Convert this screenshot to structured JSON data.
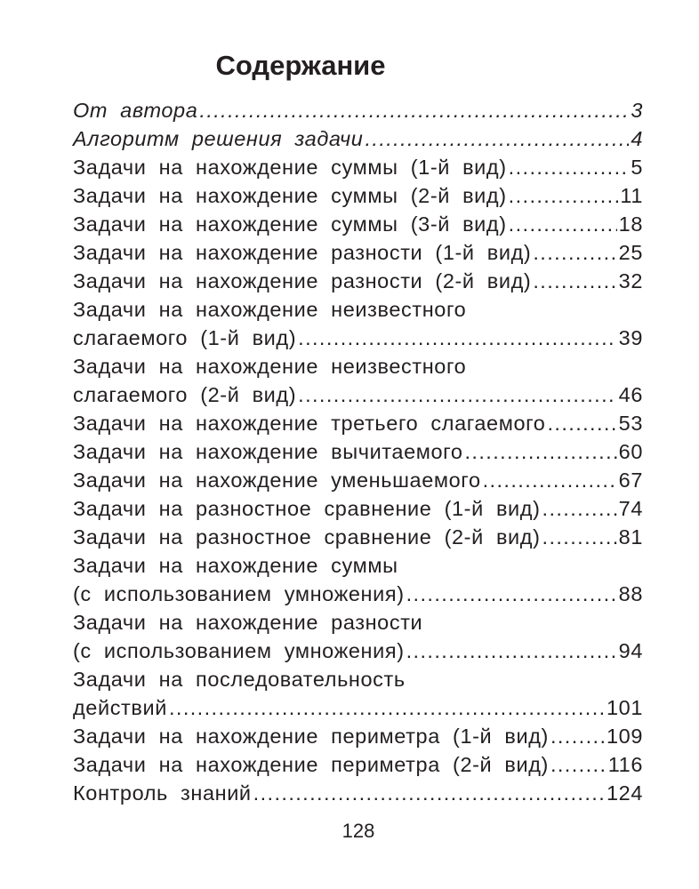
{
  "title": "Содержание",
  "entries": [
    {
      "text": "От автора",
      "page": "3",
      "italic": true
    },
    {
      "text": "Алгоритм решения задачи",
      "page": "4",
      "italic": true
    },
    {
      "text": "Задачи на нахождение суммы (1-й вид)",
      "page": "5"
    },
    {
      "text": "Задачи на нахождение суммы (2-й вид)",
      "page": "11"
    },
    {
      "text": "Задачи на нахождение суммы (3-й вид)",
      "page": "18"
    },
    {
      "text": "Задачи на нахождение разности (1-й вид)",
      "page": "25"
    },
    {
      "text": "Задачи на нахождение разности (2-й вид)",
      "page": "32"
    },
    {
      "first_line": "Задачи на нахождение неизвестного",
      "text": "слагаемого (1-й вид)",
      "page": "39"
    },
    {
      "first_line": "Задачи на нахождение неизвестного",
      "text": "слагаемого (2-й вид)",
      "page": "46"
    },
    {
      "text": "Задачи на нахождение третьего слагаемого",
      "page": "53"
    },
    {
      "text": "Задачи на нахождение вычитаемого",
      "page": "60"
    },
    {
      "text": "Задачи на нахождение уменьшаемого",
      "page": "67"
    },
    {
      "text": "Задачи на разностное сравнение (1-й вид)",
      "page": "74"
    },
    {
      "text": "Задачи на разностное сравнение (2-й вид)",
      "page": "81"
    },
    {
      "first_line": "Задачи на нахождение суммы",
      "text": "(с использованием умножения)",
      "page": "88"
    },
    {
      "first_line": "Задачи на нахождение разности",
      "text": "(с использованием умножения)",
      "page": "94"
    },
    {
      "first_line": "Задачи на последовательность",
      "text": "действий",
      "page": "101"
    },
    {
      "text": "Задачи на нахождение периметра (1-й вид)",
      "page": "109"
    },
    {
      "text": "Задачи на нахождение периметра (2-й вид)",
      "page": "116"
    },
    {
      "text": "Контроль знаний",
      "page": "124"
    }
  ],
  "page_number": "128"
}
